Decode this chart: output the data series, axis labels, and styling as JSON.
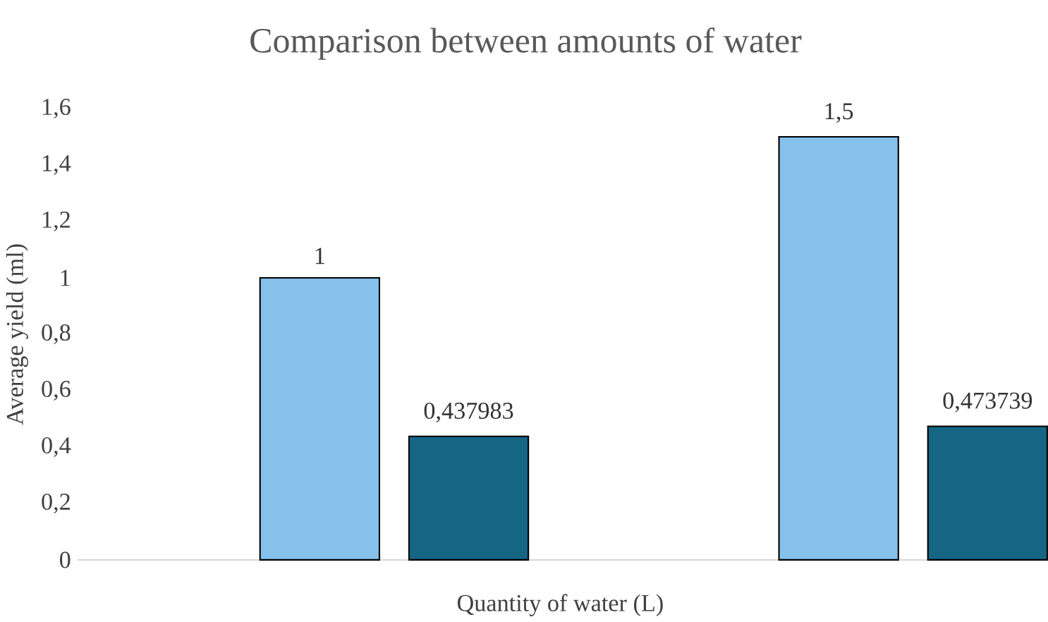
{
  "chart_data": {
    "type": "bar",
    "title": "Comparison between amounts of water",
    "xlabel": "Quantity of water (L)",
    "ylabel": "Average yield (ml)",
    "categories": [
      null,
      null
    ],
    "series": [
      {
        "color": "#85c1eb",
        "values": [
          1,
          1.5
        ],
        "value_labels": [
          "1",
          "1,5"
        ]
      },
      {
        "color": "#156585",
        "values": [
          0.437983,
          0.473739
        ],
        "value_labels": [
          "0,437983",
          "0,473739"
        ]
      }
    ],
    "ylim": [
      0,
      1.6
    ],
    "yticks": [
      {
        "value": 0,
        "label": "0"
      },
      {
        "value": 0.2,
        "label": "0,2"
      },
      {
        "value": 0.4,
        "label": "0,4"
      },
      {
        "value": 0.6,
        "label": "0,6"
      },
      {
        "value": 0.8,
        "label": "0,8"
      },
      {
        "value": 1,
        "label": "1"
      },
      {
        "value": 1.2,
        "label": "1,2"
      },
      {
        "value": 1.4,
        "label": "1,4"
      },
      {
        "value": 1.6,
        "label": "1,6"
      }
    ]
  }
}
